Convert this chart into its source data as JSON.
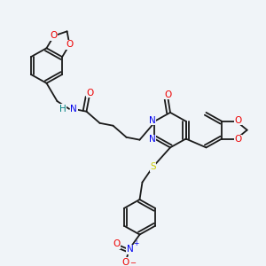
{
  "background_color": "#f0f4f8",
  "bond_color": "#1a1a1a",
  "atom_colors": {
    "N": "#0000ee",
    "O": "#ee0000",
    "S": "#cccc00",
    "H": "#008080",
    "C": "#1a1a1a"
  },
  "lw": 1.3,
  "ring_r": 0.068,
  "small_ring_r": 0.055
}
